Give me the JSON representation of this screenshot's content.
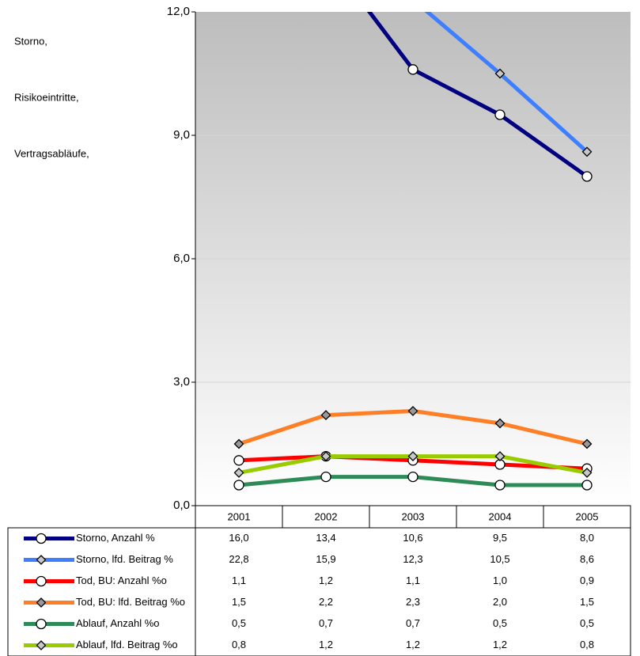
{
  "chart_data": {
    "type": "line",
    "notes_left": [
      "Storno,",
      "Risikoeintritte,",
      "Vertragsabläufe,"
    ],
    "categories": [
      "2001",
      "2002",
      "2003",
      "2004",
      "2005"
    ],
    "ylim": [
      0,
      12
    ],
    "yticks": [
      {
        "value": 0,
        "label": "0,0"
      },
      {
        "value": 3,
        "label": "3,0"
      },
      {
        "value": 6,
        "label": "6,0"
      },
      {
        "value": 9,
        "label": "9,0"
      },
      {
        "value": 12,
        "label": "12,0"
      }
    ],
    "grid": true,
    "series": [
      {
        "name": "Storno, Anzahl %",
        "color": "#000080",
        "marker": "circle",
        "marker_color": "#ffffff",
        "values": [
          16.0,
          13.4,
          10.6,
          9.5,
          8.0
        ],
        "value_labels": [
          "16,0",
          "13,4",
          "10,6",
          "9,5",
          "8,0"
        ]
      },
      {
        "name": "Storno, lfd. Beitrag %",
        "color": "#3d7fff",
        "marker": "diamond",
        "marker_color": "#c8c8c8",
        "values": [
          22.8,
          15.9,
          12.3,
          10.5,
          8.6
        ],
        "value_labels": [
          "22,8",
          "15,9",
          "12,3",
          "10,5",
          "8,6"
        ]
      },
      {
        "name": "Tod, BU: Anzahl %o",
        "color": "#ff0000",
        "marker": "circle",
        "marker_color": "#ffffff",
        "values": [
          1.1,
          1.2,
          1.1,
          1.0,
          0.9
        ],
        "value_labels": [
          "1,1",
          "1,2",
          "1,1",
          "1,0",
          "0,9"
        ]
      },
      {
        "name": "Tod, BU: lfd. Beitrag %o",
        "color": "#ff7f27",
        "marker": "diamond",
        "marker_color": "#999999",
        "values": [
          1.5,
          2.2,
          2.3,
          2.0,
          1.5
        ],
        "value_labels": [
          "1,5",
          "2,2",
          "2,3",
          "2,0",
          "1,5"
        ]
      },
      {
        "name": "Ablauf, Anzahl %o",
        "color": "#2e8b57",
        "marker": "circle",
        "marker_color": "#ffffff",
        "values": [
          0.5,
          0.7,
          0.7,
          0.5,
          0.5
        ],
        "value_labels": [
          "0,5",
          "0,7",
          "0,7",
          "0,5",
          "0,5"
        ]
      },
      {
        "name": "Ablauf, lfd. Beitrag %o",
        "color": "#99cc00",
        "marker": "diamond",
        "marker_color": "#c8c8c8",
        "values": [
          0.8,
          1.2,
          1.2,
          1.2,
          0.8
        ],
        "value_labels": [
          "0,8",
          "1,2",
          "1,2",
          "1,2",
          "0,8"
        ]
      }
    ]
  }
}
